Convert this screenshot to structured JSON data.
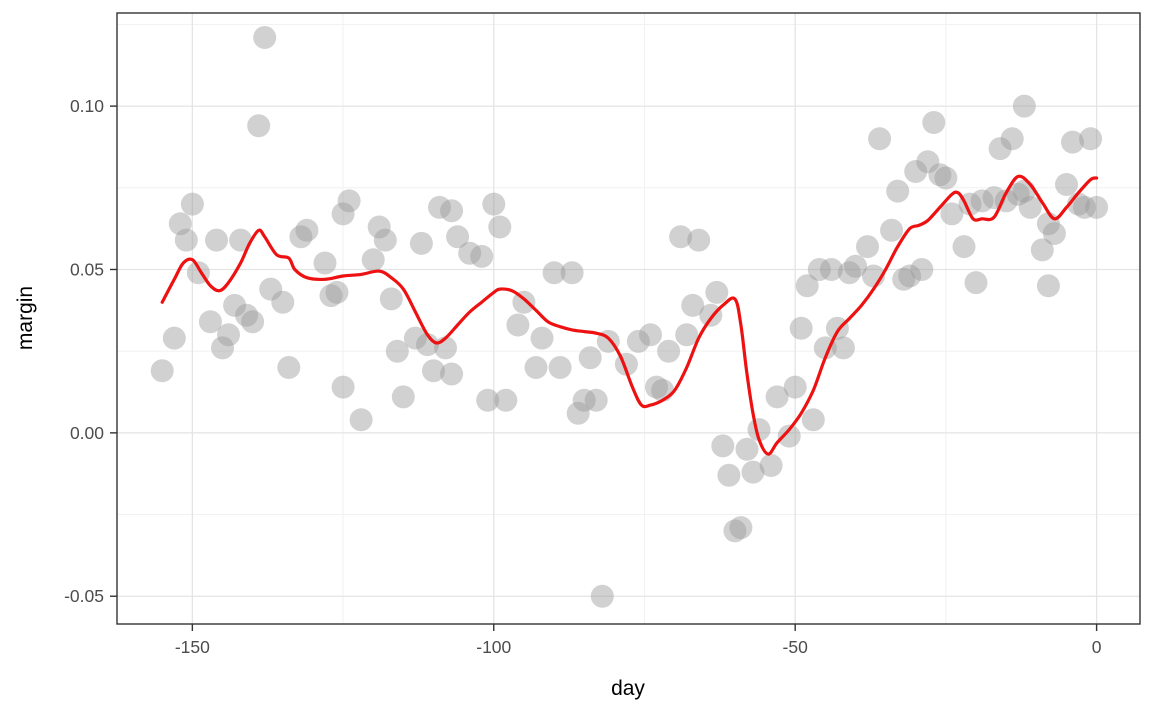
{
  "chart_data": {
    "type": "scatter",
    "title": "",
    "xlabel": "day",
    "ylabel": "margin",
    "xlim": [
      -162.5,
      7.2
    ],
    "ylim": [
      -0.0585,
      0.1285
    ],
    "grid": true,
    "legend": "none",
    "x_ticks": [
      {
        "value": -150,
        "label": "-150"
      },
      {
        "value": -100,
        "label": "-100"
      },
      {
        "value": -50,
        "label": "-50"
      },
      {
        "value": 0,
        "label": "0"
      }
    ],
    "x_minor_gridlines": [
      -125,
      -75,
      -25
    ],
    "y_ticks": [
      {
        "value": 0.1,
        "label": "0.10"
      },
      {
        "value": 0.05,
        "label": "0.05"
      },
      {
        "value": 0.0,
        "label": "0.00"
      },
      {
        "value": -0.05,
        "label": "-0.05"
      }
    ],
    "y_minor_gridlines": [
      0.125,
      0.075,
      0.025,
      -0.025
    ],
    "point_color": "#999999",
    "point_opacity": 0.45,
    "point_radius": 11.5,
    "line_color": "#ee1111",
    "line_width": 3.2,
    "points": [
      [
        -155,
        0.019
      ],
      [
        -153,
        0.029
      ],
      [
        -152,
        0.064
      ],
      [
        -151,
        0.059
      ],
      [
        -150,
        0.07
      ],
      [
        -149,
        0.049
      ],
      [
        -147,
        0.034
      ],
      [
        -146,
        0.059
      ],
      [
        -145,
        0.026
      ],
      [
        -144,
        0.03
      ],
      [
        -143,
        0.039
      ],
      [
        -142,
        0.059
      ],
      [
        -141,
        0.036
      ],
      [
        -140,
        0.034
      ],
      [
        -139,
        0.094
      ],
      [
        -138,
        0.121
      ],
      [
        -137,
        0.044
      ],
      [
        -135,
        0.04
      ],
      [
        -134,
        0.02
      ],
      [
        -132,
        0.06
      ],
      [
        -131,
        0.062
      ],
      [
        -128,
        0.052
      ],
      [
        -127,
        0.042
      ],
      [
        -126,
        0.043
      ],
      [
        -125,
        0.067
      ],
      [
        -125,
        0.014
      ],
      [
        -124,
        0.071
      ],
      [
        -122,
        0.004
      ],
      [
        -120,
        0.053
      ],
      [
        -119,
        0.063
      ],
      [
        -118,
        0.059
      ],
      [
        -117,
        0.041
      ],
      [
        -116,
        0.025
      ],
      [
        -115,
        0.011
      ],
      [
        -113,
        0.029
      ],
      [
        -112,
        0.058
      ],
      [
        -111,
        0.027
      ],
      [
        -110,
        0.019
      ],
      [
        -109,
        0.069
      ],
      [
        -108,
        0.026
      ],
      [
        -107,
        0.068
      ],
      [
        -107,
        0.018
      ],
      [
        -106,
        0.06
      ],
      [
        -104,
        0.055
      ],
      [
        -102,
        0.054
      ],
      [
        -101,
        0.01
      ],
      [
        -100,
        0.07
      ],
      [
        -99,
        0.063
      ],
      [
        -98,
        0.01
      ],
      [
        -96,
        0.033
      ],
      [
        -95,
        0.04
      ],
      [
        -93,
        0.02
      ],
      [
        -92,
        0.029
      ],
      [
        -90,
        0.049
      ],
      [
        -89,
        0.02
      ],
      [
        -87,
        0.049
      ],
      [
        -86,
        0.006
      ],
      [
        -85,
        0.01
      ],
      [
        -84,
        0.023
      ],
      [
        -83,
        0.01
      ],
      [
        -82,
        -0.05
      ],
      [
        -81,
        0.028
      ],
      [
        -78,
        0.021
      ],
      [
        -76,
        0.028
      ],
      [
        -74,
        0.03
      ],
      [
        -73,
        0.014
      ],
      [
        -72,
        0.013
      ],
      [
        -71,
        0.025
      ],
      [
        -69,
        0.06
      ],
      [
        -68,
        0.03
      ],
      [
        -67,
        0.039
      ],
      [
        -66,
        0.059
      ],
      [
        -64,
        0.036
      ],
      [
        -63,
        0.043
      ],
      [
        -62,
        -0.004
      ],
      [
        -61,
        -0.013
      ],
      [
        -60,
        -0.03
      ],
      [
        -59,
        -0.029
      ],
      [
        -58,
        -0.005
      ],
      [
        -57,
        -0.012
      ],
      [
        -56,
        0.001
      ],
      [
        -54,
        -0.01
      ],
      [
        -53,
        0.011
      ],
      [
        -51,
        -0.001
      ],
      [
        -50,
        0.014
      ],
      [
        -49,
        0.032
      ],
      [
        -48,
        0.045
      ],
      [
        -47,
        0.004
      ],
      [
        -46,
        0.05
      ],
      [
        -45,
        0.026
      ],
      [
        -44,
        0.05
      ],
      [
        -43,
        0.032
      ],
      [
        -42,
        0.026
      ],
      [
        -41,
        0.049
      ],
      [
        -40,
        0.051
      ],
      [
        -38,
        0.057
      ],
      [
        -37,
        0.048
      ],
      [
        -36,
        0.09
      ],
      [
        -34,
        0.062
      ],
      [
        -33,
        0.074
      ],
      [
        -32,
        0.047
      ],
      [
        -31,
        0.048
      ],
      [
        -30,
        0.08
      ],
      [
        -29,
        0.05
      ],
      [
        -28,
        0.083
      ],
      [
        -27,
        0.095
      ],
      [
        -26,
        0.079
      ],
      [
        -25,
        0.078
      ],
      [
        -24,
        0.067
      ],
      [
        -22,
        0.057
      ],
      [
        -21,
        0.07
      ],
      [
        -20,
        0.046
      ],
      [
        -19,
        0.071
      ],
      [
        -17,
        0.072
      ],
      [
        -16,
        0.087
      ],
      [
        -15,
        0.071
      ],
      [
        -14,
        0.09
      ],
      [
        -13,
        0.073
      ],
      [
        -12,
        0.1
      ],
      [
        -12,
        0.074
      ],
      [
        -11,
        0.069
      ],
      [
        -9,
        0.056
      ],
      [
        -8,
        0.064
      ],
      [
        -8,
        0.045
      ],
      [
        -7,
        0.061
      ],
      [
        -5,
        0.076
      ],
      [
        -4,
        0.089
      ],
      [
        -3,
        0.07
      ],
      [
        -2,
        0.069
      ],
      [
        -1,
        0.09
      ],
      [
        0,
        0.069
      ]
    ],
    "smooth_line": [
      [
        -155,
        0.04
      ],
      [
        -153,
        0.047
      ],
      [
        -151.5,
        0.052
      ],
      [
        -150,
        0.053
      ],
      [
        -148.5,
        0.049
      ],
      [
        -147,
        0.045
      ],
      [
        -145.5,
        0.0435
      ],
      [
        -144,
        0.046
      ],
      [
        -142,
        0.052
      ],
      [
        -140.5,
        0.058
      ],
      [
        -139,
        0.062
      ],
      [
        -138,
        0.06
      ],
      [
        -136,
        0.0545
      ],
      [
        -134,
        0.0535
      ],
      [
        -133,
        0.05
      ],
      [
        -131,
        0.0475
      ],
      [
        -128,
        0.047
      ],
      [
        -125,
        0.048
      ],
      [
        -122,
        0.0485
      ],
      [
        -119,
        0.0495
      ],
      [
        -117,
        0.0475
      ],
      [
        -115,
        0.044
      ],
      [
        -113,
        0.037
      ],
      [
        -111,
        0.03
      ],
      [
        -109.5,
        0.0275
      ],
      [
        -108,
        0.029
      ],
      [
        -106,
        0.033
      ],
      [
        -104,
        0.037
      ],
      [
        -102,
        0.04
      ],
      [
        -100,
        0.043
      ],
      [
        -99,
        0.044
      ],
      [
        -97,
        0.0435
      ],
      [
        -95,
        0.041
      ],
      [
        -93,
        0.0375
      ],
      [
        -91,
        0.034
      ],
      [
        -89,
        0.0325
      ],
      [
        -87,
        0.0315
      ],
      [
        -85,
        0.031
      ],
      [
        -83,
        0.0305
      ],
      [
        -81,
        0.029
      ],
      [
        -79,
        0.0235
      ],
      [
        -77,
        0.014
      ],
      [
        -75.5,
        0.0085
      ],
      [
        -74,
        0.0085
      ],
      [
        -72,
        0.01
      ],
      [
        -70,
        0.013
      ],
      [
        -68,
        0.02
      ],
      [
        -66,
        0.029
      ],
      [
        -64,
        0.035
      ],
      [
        -62,
        0.039
      ],
      [
        -60,
        0.041
      ],
      [
        -59,
        0.033
      ],
      [
        -58,
        0.018
      ],
      [
        -57,
        0.006
      ],
      [
        -56,
        -0.002
      ],
      [
        -54.5,
        -0.0065
      ],
      [
        -53,
        -0.003
      ],
      [
        -51,
        0.001
      ],
      [
        -49,
        0.006
      ],
      [
        -47,
        0.013
      ],
      [
        -45,
        0.023
      ],
      [
        -43,
        0.031
      ],
      [
        -41,
        0.035
      ],
      [
        -39,
        0.039
      ],
      [
        -37,
        0.044
      ],
      [
        -35,
        0.05
      ],
      [
        -33,
        0.057
      ],
      [
        -31,
        0.0625
      ],
      [
        -29.5,
        0.0635
      ],
      [
        -28,
        0.065
      ],
      [
        -26,
        0.069
      ],
      [
        -24,
        0.073
      ],
      [
        -23,
        0.0735
      ],
      [
        -22,
        0.071
      ],
      [
        -20.5,
        0.0655
      ],
      [
        -19,
        0.0655
      ],
      [
        -17,
        0.066
      ],
      [
        -15,
        0.0735
      ],
      [
        -13,
        0.0785
      ],
      [
        -11,
        0.076
      ],
      [
        -9,
        0.0705
      ],
      [
        -7,
        0.0655
      ],
      [
        -5,
        0.069
      ],
      [
        -3,
        0.0735
      ],
      [
        -1,
        0.0775
      ],
      [
        0,
        0.078
      ]
    ]
  }
}
